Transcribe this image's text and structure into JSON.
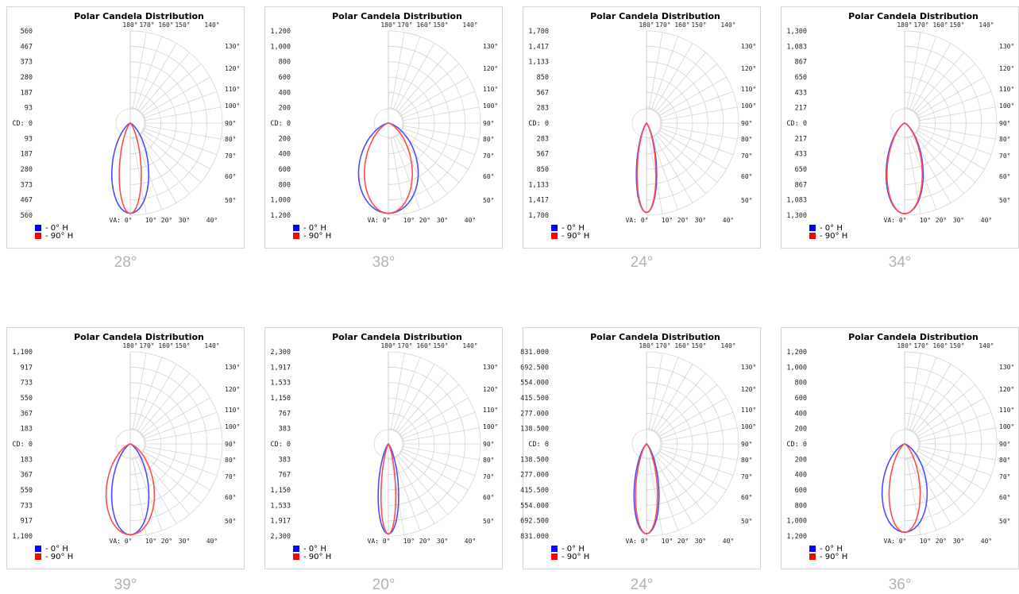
{
  "chart_data": [
    {
      "type": "polar",
      "title": "Polar Candela Distribution",
      "caption": "28°",
      "radial_ticks": [
        "560",
        "467",
        "373",
        "280",
        "187",
        "93",
        "CD: 0",
        "93",
        "187",
        "280",
        "373",
        "467",
        "560"
      ],
      "beam_angle_labels": [
        "180°",
        "170°",
        "160°",
        "150°",
        "140°",
        "130°",
        "120°",
        "110°",
        "100°",
        "90°",
        "80°",
        "70°",
        "60°",
        "50°"
      ],
      "va_labels": [
        "VA: 0°",
        "10°",
        "20°",
        "30°",
        "40°"
      ],
      "rmax": 560,
      "series": [
        {
          "name": "- 0° H",
          "color": "#4d4dff",
          "peak": 549,
          "width": 0.3
        },
        {
          "name": "- 90° H",
          "color": "#ff4d4d",
          "peak": 549,
          "width": 0.21
        }
      ]
    },
    {
      "type": "polar",
      "title": "Polar Candela Distribution",
      "caption": "38°",
      "radial_ticks": [
        "1,200",
        "1,000",
        "800",
        "600",
        "400",
        "200",
        "CD: 0",
        "200",
        "400",
        "600",
        "800",
        "1,000",
        "1,200"
      ],
      "beam_angle_labels": [
        "180°",
        "170°",
        "160°",
        "150°",
        "140°",
        "130°",
        "120°",
        "110°",
        "100°",
        "90°",
        "80°",
        "70°",
        "60°",
        "50°"
      ],
      "va_labels": [
        "VA: 0°",
        "10°",
        "20°",
        "30°",
        "40°"
      ],
      "rmax": 1200,
      "series": [
        {
          "name": "- 0° H",
          "color": "#4d4dff",
          "peak": 1175,
          "width": 0.42
        },
        {
          "name": "- 90° H",
          "color": "#ff4d4d",
          "peak": 1175,
          "width": 0.36
        }
      ]
    },
    {
      "type": "polar",
      "title": "Polar Candela Distribution",
      "caption": "24°",
      "radial_ticks": [
        "1,700",
        "1,417",
        "1,133",
        "850",
        "567",
        "283",
        "CD: 0",
        "283",
        "567",
        "850",
        "1,133",
        "1,417",
        "1,700"
      ],
      "beam_angle_labels": [
        "180°",
        "170°",
        "160°",
        "150°",
        "140°",
        "130°",
        "120°",
        "110°",
        "100°",
        "90°",
        "80°",
        "70°",
        "60°",
        "50°"
      ],
      "va_labels": [
        "VA: 0°",
        "10°",
        "20°",
        "30°",
        "40°"
      ],
      "rmax": 1700,
      "series": [
        {
          "name": "- 0° H",
          "color": "#4d4dff",
          "peak": 1650,
          "width": 0.2
        },
        {
          "name": "- 90° H",
          "color": "#ff4d4d",
          "peak": 1650,
          "width": 0.19
        }
      ]
    },
    {
      "type": "polar",
      "title": "Polar Candela Distribution",
      "caption": "34°",
      "radial_ticks": [
        "1,300",
        "1,083",
        "867",
        "650",
        "433",
        "217",
        "CD: 0",
        "217",
        "433",
        "650",
        "867",
        "1,083",
        "1,300"
      ],
      "beam_angle_labels": [
        "180°",
        "170°",
        "160°",
        "150°",
        "140°",
        "130°",
        "120°",
        "110°",
        "100°",
        "90°",
        "80°",
        "70°",
        "60°",
        "50°"
      ],
      "va_labels": [
        "VA: 0°",
        "10°",
        "20°",
        "30°",
        "40°"
      ],
      "rmax": 1300,
      "series": [
        {
          "name": "- 0° H",
          "color": "#4d4dff",
          "peak": 1280,
          "width": 0.3
        },
        {
          "name": "- 90° H",
          "color": "#ff4d4d",
          "peak": 1280,
          "width": 0.29
        }
      ]
    },
    {
      "type": "polar",
      "title": "Polar Candela Distribution",
      "caption": "39°",
      "radial_ticks": [
        "1,100",
        "917",
        "733",
        "550",
        "367",
        "183",
        "CD: 0",
        "183",
        "367",
        "550",
        "733",
        "917",
        "1,100"
      ],
      "beam_angle_labels": [
        "180°",
        "170°",
        "160°",
        "150°",
        "140°",
        "130°",
        "120°",
        "110°",
        "100°",
        "90°",
        "80°",
        "70°",
        "60°",
        "50°"
      ],
      "va_labels": [
        "VA: 0°",
        "10°",
        "20°",
        "30°",
        "40°"
      ],
      "rmax": 1100,
      "series": [
        {
          "name": "- 0° H",
          "color": "#4d4dff",
          "peak": 1085,
          "width": 0.3
        },
        {
          "name": "- 90° H",
          "color": "#ff4d4d",
          "peak": 1085,
          "width": 0.36
        }
      ]
    },
    {
      "type": "polar",
      "title": "Polar Candela Distribution",
      "caption": "20°",
      "radial_ticks": [
        "2,300",
        "1,917",
        "1,533",
        "1,150",
        "767",
        "383",
        "CD: 0",
        "383",
        "767",
        "1,150",
        "1,533",
        "1,917",
        "2,300"
      ],
      "beam_angle_labels": [
        "180°",
        "170°",
        "160°",
        "150°",
        "140°",
        "130°",
        "120°",
        "110°",
        "100°",
        "90°",
        "80°",
        "70°",
        "60°",
        "50°"
      ],
      "va_labels": [
        "VA: 0°",
        "10°",
        "20°",
        "30°",
        "40°"
      ],
      "rmax": 2300,
      "series": [
        {
          "name": "- 0° H",
          "color": "#4d4dff",
          "peak": 2250,
          "width": 0.2
        },
        {
          "name": "- 90° H",
          "color": "#ff4d4d",
          "peak": 2250,
          "width": 0.16
        }
      ]
    },
    {
      "type": "polar",
      "title": "Polar Candela Distribution",
      "caption": "24°",
      "radial_ticks": [
        "831.000",
        "692.500",
        "554.000",
        "415.500",
        "277.000",
        "138.500",
        "CD: 0",
        "138.500",
        "277.000",
        "415.500",
        "554.000",
        "692.500",
        "831.000"
      ],
      "beam_angle_labels": [
        "180°",
        "170°",
        "160°",
        "150°",
        "140°",
        "130°",
        "120°",
        "110°",
        "100°",
        "90°",
        "80°",
        "70°",
        "60°",
        "50°"
      ],
      "va_labels": [
        "VA: 0°",
        "10°",
        "20°",
        "30°",
        "40°"
      ],
      "rmax": 831,
      "series": [
        {
          "name": "- 0° H",
          "color": "#4d4dff",
          "peak": 811,
          "width": 0.23
        },
        {
          "name": "- 90° H",
          "color": "#ff4d4d",
          "peak": 811,
          "width": 0.21
        }
      ]
    },
    {
      "type": "polar",
      "title": "Polar Candela Distribution",
      "caption": "36°",
      "radial_ticks": [
        "1,200",
        "1,000",
        "800",
        "600",
        "400",
        "200",
        "CD: 0",
        "200",
        "400",
        "600",
        "800",
        "1,000",
        "1,200"
      ],
      "beam_angle_labels": [
        "180°",
        "170°",
        "160°",
        "150°",
        "140°",
        "130°",
        "120°",
        "110°",
        "100°",
        "90°",
        "80°",
        "70°",
        "60°",
        "50°"
      ],
      "va_labels": [
        "VA: 0°",
        "10°",
        "20°",
        "30°",
        "40°"
      ],
      "rmax": 1200,
      "series": [
        {
          "name": "- 0° H",
          "color": "#4d4dff",
          "peak": 1150,
          "width": 0.35
        },
        {
          "name": "- 90° H",
          "color": "#ff4d4d",
          "peak": 1150,
          "width": 0.27
        }
      ]
    }
  ]
}
